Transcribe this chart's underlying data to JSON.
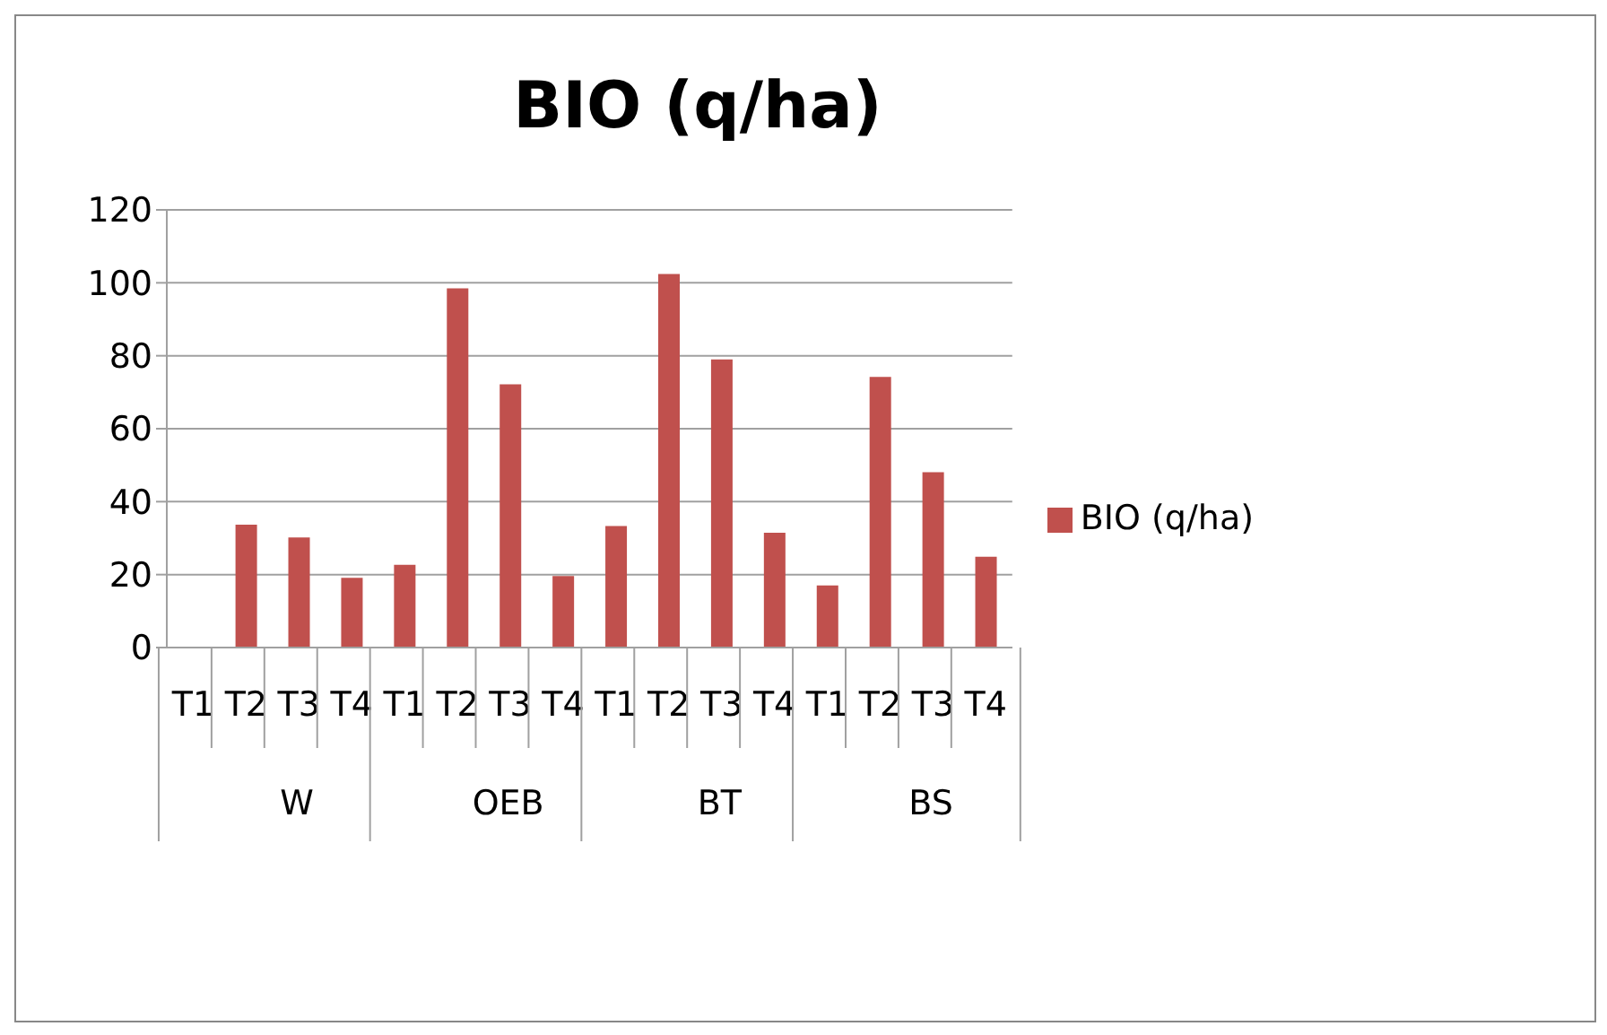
{
  "chart_data": {
    "type": "bar",
    "title": "BIO (q/ha)",
    "categories": [
      "T1",
      "T2",
      "T3",
      "T4",
      "T1",
      "T2",
      "T3",
      "T4",
      "T1",
      "T2",
      "T3",
      "T4",
      "T1",
      "T2",
      "T3",
      "T4"
    ],
    "annotations": [
      "W",
      "OEB",
      "BT",
      "BS"
    ],
    "series": [
      {
        "name": "BIO (q/ha)",
        "color": "#c0504d",
        "values": [
          null,
          33.7,
          30.2,
          19.1,
          22.7,
          98.5,
          72.2,
          19.6,
          33.3,
          102.4,
          79.0,
          31.5,
          17.0,
          74.2,
          48.1,
          24.9
        ]
      }
    ],
    "ylim": [
      0,
      120
    ],
    "yticks": [
      0,
      20,
      40,
      60,
      80,
      100,
      120
    ],
    "grid": "y",
    "legend": "right"
  }
}
